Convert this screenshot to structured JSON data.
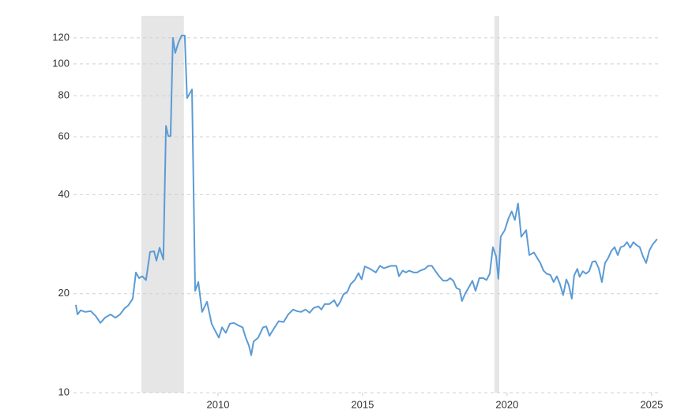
{
  "chart_data": {
    "type": "line",
    "log_scale": true,
    "grid": true,
    "xlim": [
      2005.0,
      2025.25
    ],
    "xticks": [
      2010,
      2015,
      2020,
      2025
    ],
    "ylim": [
      10,
      140
    ],
    "yticks": [
      10,
      20,
      40,
      60,
      80,
      100,
      120
    ],
    "shaded_regions": [
      [
        2007.35,
        2008.82
      ],
      [
        2019.56,
        2019.73
      ]
    ],
    "shade_color": "#e6e6e6",
    "x": [
      2005.08,
      2005.14,
      2005.25,
      2005.41,
      2005.6,
      2005.77,
      2005.93,
      2006.09,
      2006.28,
      2006.45,
      2006.61,
      2006.78,
      2006.89,
      2007.05,
      2007.16,
      2007.27,
      2007.38,
      2007.51,
      2007.65,
      2007.79,
      2007.87,
      2007.98,
      2008.11,
      2008.2,
      2008.28,
      2008.36,
      2008.44,
      2008.52,
      2008.63,
      2008.74,
      2008.85,
      2008.93,
      2009.1,
      2009.21,
      2009.32,
      2009.45,
      2009.62,
      2009.78,
      2009.89,
      2010.03,
      2010.14,
      2010.27,
      2010.41,
      2010.55,
      2010.71,
      2010.85,
      2010.96,
      2011.07,
      2011.15,
      2011.23,
      2011.39,
      2011.56,
      2011.67,
      2011.78,
      2011.94,
      2012.1,
      2012.27,
      2012.43,
      2012.6,
      2012.73,
      2012.87,
      2013.03,
      2013.17,
      2013.31,
      2013.47,
      2013.58,
      2013.69,
      2013.85,
      2014.02,
      2014.13,
      2014.23,
      2014.34,
      2014.48,
      2014.59,
      2014.73,
      2014.86,
      2014.97,
      2015.08,
      2015.22,
      2015.36,
      2015.46,
      2015.6,
      2015.74,
      2015.85,
      2015.98,
      2016.17,
      2016.26,
      2016.39,
      2016.5,
      2016.61,
      2016.78,
      2016.89,
      2016.99,
      2017.16,
      2017.27,
      2017.4,
      2017.51,
      2017.65,
      2017.79,
      2017.92,
      2018.03,
      2018.14,
      2018.25,
      2018.36,
      2018.44,
      2018.55,
      2018.69,
      2018.8,
      2018.91,
      2019.04,
      2019.18,
      2019.29,
      2019.4,
      2019.51,
      2019.62,
      2019.7,
      2019.78,
      2019.92,
      2020.05,
      2020.16,
      2020.27,
      2020.38,
      2020.49,
      2020.66,
      2020.77,
      2020.93,
      2021.04,
      2021.15,
      2021.26,
      2021.37,
      2021.5,
      2021.61,
      2021.72,
      2021.83,
      2021.94,
      2022.05,
      2022.13,
      2022.24,
      2022.32,
      2022.43,
      2022.51,
      2022.62,
      2022.73,
      2022.84,
      2022.95,
      2023.06,
      2023.17,
      2023.28,
      2023.39,
      2023.5,
      2023.61,
      2023.72,
      2023.83,
      2023.93,
      2024.04,
      2024.15,
      2024.26,
      2024.37,
      2024.48,
      2024.59,
      2024.7,
      2024.81,
      2024.92,
      2025.03,
      2025.19
    ],
    "series": [
      {
        "color": "#5b9bd5",
        "values": [
          18.5,
          17.3,
          17.8,
          17.6,
          17.7,
          17.1,
          16.3,
          16.9,
          17.3,
          16.9,
          17.3,
          18.1,
          18.4,
          19.3,
          23.2,
          22.3,
          22.6,
          22.0,
          26.8,
          26.9,
          25.2,
          27.6,
          25.4,
          64.8,
          60.3,
          60.3,
          120,
          107.9,
          116,
          122,
          121.9,
          78.7,
          83.6,
          20.4,
          21.7,
          17.6,
          18.9,
          16.2,
          15.5,
          14.7,
          15.8,
          15.2,
          16.2,
          16.3,
          16.0,
          15.8,
          14.7,
          13.9,
          13.0,
          14.3,
          14.7,
          15.8,
          15.9,
          14.9,
          15.7,
          16.5,
          16.4,
          17.3,
          17.9,
          17.7,
          17.6,
          17.9,
          17.5,
          18.1,
          18.3,
          17.9,
          18.6,
          18.6,
          19.1,
          18.3,
          18.9,
          19.9,
          20.3,
          21.4,
          22.0,
          23.1,
          22.1,
          24.2,
          23.9,
          23.5,
          23.2,
          24.3,
          23.9,
          24.1,
          24.3,
          24.3,
          22.6,
          23.5,
          23.2,
          23.5,
          23.2,
          23.2,
          23.5,
          23.8,
          24.3,
          24.3,
          23.5,
          22.6,
          21.9,
          21.9,
          22.3,
          21.9,
          20.8,
          20.6,
          19.0,
          20.0,
          21.0,
          21.9,
          20.4,
          22.3,
          22.3,
          22.0,
          23.0,
          27.7,
          26.0,
          22.2,
          29.8,
          31.2,
          33.9,
          35.6,
          33.5,
          37.6,
          29.8,
          31.2,
          26.2,
          26.7,
          25.7,
          24.8,
          23.5,
          23.0,
          22.8,
          21.7,
          22.6,
          21.4,
          19.8,
          22.1,
          21.3,
          19.3,
          22.7,
          23.8,
          22.5,
          23.4,
          23.0,
          23.4,
          25.0,
          25.1,
          23.9,
          21.7,
          24.8,
          25.7,
          27.0,
          27.7,
          26.2,
          27.7,
          27.9,
          28.7,
          27.6,
          28.7,
          28.1,
          27.7,
          26.0,
          24.8,
          27.0,
          28.2,
          29.3
        ]
      }
    ]
  }
}
